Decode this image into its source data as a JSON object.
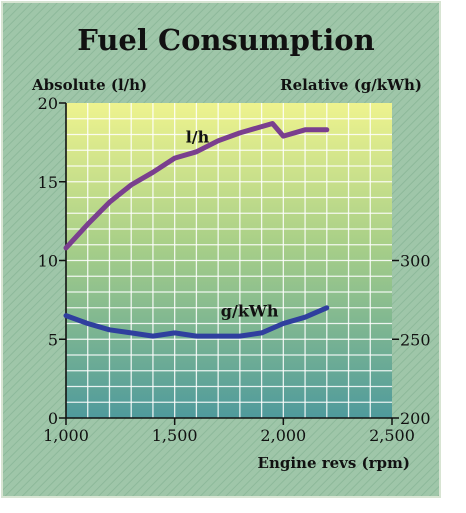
{
  "chart_data": {
    "type": "line",
    "title": "Fuel Consumption",
    "ylabel_left": "Absolute (l/h)",
    "ylabel_right": "Relative (g/kWh)",
    "xlabel": "Engine revs (rpm)",
    "xlim": [
      1000,
      2500
    ],
    "ylim_left": [
      0,
      20
    ],
    "ylim_right": [
      200,
      300
    ],
    "x_ticks": [
      {
        "value": 1000,
        "label": "1,000"
      },
      {
        "value": 1500,
        "label": "1,500"
      },
      {
        "value": 2000,
        "label": "2,000"
      },
      {
        "value": 2500,
        "label": "2,500"
      }
    ],
    "y_ticks_left": [
      {
        "value": 0,
        "label": "0"
      },
      {
        "value": 5,
        "label": "5"
      },
      {
        "value": 10,
        "label": "10"
      },
      {
        "value": 15,
        "label": "15"
      },
      {
        "value": 20,
        "label": "20"
      }
    ],
    "y_ticks_right": [
      {
        "value": 200,
        "label": "200"
      },
      {
        "value": 250,
        "label": "250"
      },
      {
        "value": 300,
        "label": "300"
      }
    ],
    "grid": true,
    "series": [
      {
        "name": "l/h",
        "axis": "left",
        "color": "#7a3f8e",
        "points": [
          [
            1000,
            10.8
          ],
          [
            1100,
            12.3
          ],
          [
            1200,
            13.7
          ],
          [
            1300,
            14.8
          ],
          [
            1400,
            15.6
          ],
          [
            1500,
            16.5
          ],
          [
            1600,
            16.9
          ],
          [
            1700,
            17.6
          ],
          [
            1800,
            18.1
          ],
          [
            1900,
            18.5
          ],
          [
            1950,
            18.7
          ],
          [
            2000,
            17.9
          ],
          [
            2100,
            18.3
          ],
          [
            2200,
            18.3
          ]
        ]
      },
      {
        "name": "g/kWh",
        "axis": "right",
        "color": "#2f3f9e",
        "points": [
          [
            1000,
            265
          ],
          [
            1100,
            260
          ],
          [
            1200,
            256
          ],
          [
            1300,
            254
          ],
          [
            1400,
            252
          ],
          [
            1500,
            254
          ],
          [
            1600,
            252
          ],
          [
            1700,
            252
          ],
          [
            1800,
            252
          ],
          [
            1900,
            254
          ],
          [
            2000,
            260
          ],
          [
            2100,
            264
          ],
          [
            2200,
            270
          ]
        ]
      }
    ],
    "colors": {
      "background": "#9fc4a8",
      "plot_top": "#eef38e",
      "plot_bottom": "#4f9a9c",
      "grid": "#ffffff",
      "text": "#111111"
    }
  }
}
